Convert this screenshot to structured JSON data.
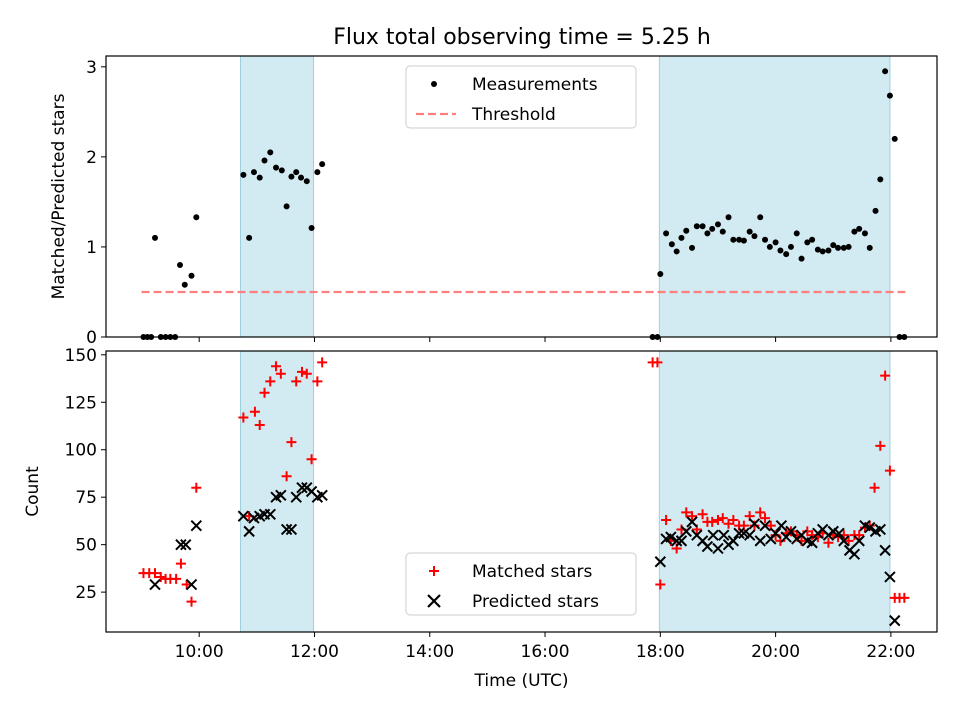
{
  "title": "Flux total observing time = 5.25 h",
  "chart_data": [
    {
      "type": "scatter",
      "ylabel": "Matched/Predicted stars",
      "ylim": [
        0,
        3.12
      ],
      "yticks": [
        0,
        1,
        2,
        3
      ],
      "xlim": [
        "08:23",
        "22:48"
      ],
      "shaded_intervals": [
        [
          "10:43",
          "11:59"
        ],
        [
          "17:59",
          "21:59"
        ]
      ],
      "shade_color": "#add8e6",
      "legend": {
        "position": "top-center",
        "entries": [
          "Measurements",
          "Threshold"
        ]
      },
      "threshold": {
        "name": "Threshold",
        "value": 0.5,
        "x": [
          "09:00",
          "22:15"
        ],
        "color": "#ff7f7f",
        "style": "dashed"
      },
      "series": [
        {
          "name": "Measurements",
          "marker": "dot",
          "color": "#000000",
          "points": [
            [
              "09:02",
              0
            ],
            [
              "09:06",
              0
            ],
            [
              "09:10",
              0
            ],
            [
              "09:14",
              1.1
            ],
            [
              "09:20",
              0
            ],
            [
              "09:25",
              0
            ],
            [
              "09:30",
              0
            ],
            [
              "09:35",
              0
            ],
            [
              "09:40",
              0.8
            ],
            [
              "09:45",
              0.58
            ],
            [
              "09:52",
              0.68
            ],
            [
              "09:57",
              1.33
            ],
            [
              "10:46",
              1.8
            ],
            [
              "10:52",
              1.1
            ],
            [
              "10:57",
              1.83
            ],
            [
              "11:03",
              1.77
            ],
            [
              "11:08",
              1.96
            ],
            [
              "11:14",
              2.05
            ],
            [
              "11:20",
              1.88
            ],
            [
              "11:26",
              1.85
            ],
            [
              "11:31",
              1.45
            ],
            [
              "11:36",
              1.78
            ],
            [
              "11:41",
              1.83
            ],
            [
              "11:46",
              1.77
            ],
            [
              "11:52",
              1.73
            ],
            [
              "11:57",
              1.21
            ],
            [
              "12:03",
              1.83
            ],
            [
              "12:08",
              1.92
            ],
            [
              "17:52",
              0
            ],
            [
              "17:57",
              0
            ],
            [
              "18:00",
              0.7
            ],
            [
              "18:06",
              1.15
            ],
            [
              "18:12",
              1.03
            ],
            [
              "18:17",
              0.95
            ],
            [
              "18:22",
              1.1
            ],
            [
              "18:27",
              1.18
            ],
            [
              "18:33",
              0.99
            ],
            [
              "18:38",
              1.23
            ],
            [
              "18:44",
              1.23
            ],
            [
              "18:49",
              1.15
            ],
            [
              "18:54",
              1.2
            ],
            [
              "19:00",
              1.25
            ],
            [
              "19:05",
              1.17
            ],
            [
              "19:11",
              1.33
            ],
            [
              "19:16",
              1.08
            ],
            [
              "19:22",
              1.08
            ],
            [
              "19:27",
              1.07
            ],
            [
              "19:33",
              1.17
            ],
            [
              "19:38",
              1.12
            ],
            [
              "19:44",
              1.33
            ],
            [
              "19:49",
              1.08
            ],
            [
              "19:54",
              1.0
            ],
            [
              "20:00",
              1.05
            ],
            [
              "20:05",
              0.96
            ],
            [
              "20:11",
              0.92
            ],
            [
              "20:16",
              1.0
            ],
            [
              "20:22",
              1.15
            ],
            [
              "20:27",
              0.87
            ],
            [
              "20:33",
              1.05
            ],
            [
              "20:38",
              1.08
            ],
            [
              "20:44",
              0.97
            ],
            [
              "20:49",
              0.95
            ],
            [
              "20:55",
              0.96
            ],
            [
              "21:00",
              1.02
            ],
            [
              "21:05",
              0.99
            ],
            [
              "21:11",
              0.99
            ],
            [
              "21:16",
              1.0
            ],
            [
              "21:22",
              1.17
            ],
            [
              "21:27",
              1.2
            ],
            [
              "21:33",
              1.15
            ],
            [
              "21:38",
              0.99
            ],
            [
              "21:44",
              1.4
            ],
            [
              "21:49",
              1.75
            ],
            [
              "21:54",
              2.95
            ],
            [
              "21:59",
              2.68
            ],
            [
              "22:04",
              2.2
            ],
            [
              "22:09",
              0
            ],
            [
              "22:14",
              0
            ]
          ]
        }
      ]
    },
    {
      "type": "scatter",
      "xlabel": "Time (UTC)",
      "ylabel": "Count",
      "ylim": [
        4,
        152
      ],
      "yticks": [
        25,
        50,
        75,
        100,
        125,
        150
      ],
      "xlim": [
        "08:23",
        "22:48"
      ],
      "xticks": [
        "10:00",
        "12:00",
        "14:00",
        "16:00",
        "18:00",
        "20:00",
        "22:00"
      ],
      "shaded_intervals": [
        [
          "10:43",
          "11:59"
        ],
        [
          "17:59",
          "21:59"
        ]
      ],
      "shade_color": "#add8e6",
      "legend": {
        "position": "bottom-center",
        "entries": [
          "Matched stars",
          "Predicted stars"
        ]
      },
      "series": [
        {
          "name": "Matched stars",
          "marker": "plus",
          "color": "#ff0000",
          "points": [
            [
              "09:02",
              35
            ],
            [
              "09:08",
              35
            ],
            [
              "09:14",
              35
            ],
            [
              "09:20",
              33
            ],
            [
              "09:25",
              32
            ],
            [
              "09:30",
              32
            ],
            [
              "09:36",
              32
            ],
            [
              "09:41",
              40
            ],
            [
              "09:47",
              29
            ],
            [
              "09:52",
              20
            ],
            [
              "09:57",
              80
            ],
            [
              "10:46",
              117
            ],
            [
              "10:52",
              65
            ],
            [
              "10:58",
              120
            ],
            [
              "11:03",
              113
            ],
            [
              "11:08",
              130
            ],
            [
              "11:14",
              136
            ],
            [
              "11:20",
              144
            ],
            [
              "11:25",
              140
            ],
            [
              "11:31",
              86
            ],
            [
              "11:36",
              104
            ],
            [
              "11:41",
              136
            ],
            [
              "11:47",
              141
            ],
            [
              "11:52",
              140
            ],
            [
              "11:57",
              95
            ],
            [
              "12:03",
              136
            ],
            [
              "12:08",
              146
            ],
            [
              "17:52",
              146
            ],
            [
              "17:57",
              146
            ],
            [
              "18:00",
              29
            ],
            [
              "18:06",
              63
            ],
            [
              "18:11",
              52
            ],
            [
              "18:17",
              48
            ],
            [
              "18:22",
              58
            ],
            [
              "18:27",
              67
            ],
            [
              "18:33",
              65
            ],
            [
              "18:38",
              58
            ],
            [
              "18:44",
              66
            ],
            [
              "18:49",
              62
            ],
            [
              "18:54",
              62
            ],
            [
              "19:00",
              63
            ],
            [
              "19:05",
              64
            ],
            [
              "19:11",
              61
            ],
            [
              "19:16",
              63
            ],
            [
              "19:22",
              60
            ],
            [
              "19:27",
              60
            ],
            [
              "19:33",
              65
            ],
            [
              "19:38",
              60
            ],
            [
              "19:44",
              67
            ],
            [
              "19:49",
              64
            ],
            [
              "19:55",
              60
            ],
            [
              "20:00",
              55
            ],
            [
              "20:05",
              52
            ],
            [
              "20:11",
              56
            ],
            [
              "20:16",
              57
            ],
            [
              "20:22",
              55
            ],
            [
              "20:27",
              52
            ],
            [
              "20:33",
              57
            ],
            [
              "20:38",
              55
            ],
            [
              "20:44",
              54
            ],
            [
              "20:49",
              56
            ],
            [
              "20:55",
              51
            ],
            [
              "21:00",
              55
            ],
            [
              "21:05",
              54
            ],
            [
              "21:11",
              55
            ],
            [
              "21:16",
              52
            ],
            [
              "21:22",
              55
            ],
            [
              "21:27",
              55
            ],
            [
              "21:33",
              59
            ],
            [
              "21:38",
              60
            ],
            [
              "21:43",
              80
            ],
            [
              "21:49",
              102
            ],
            [
              "21:54",
              139
            ],
            [
              "21:59",
              89
            ],
            [
              "22:04",
              22
            ],
            [
              "22:09",
              22
            ],
            [
              "22:14",
              22
            ]
          ]
        },
        {
          "name": "Predicted stars",
          "marker": "x",
          "color": "#000000",
          "points": [
            [
              "09:14",
              29
            ],
            [
              "09:41",
              50
            ],
            [
              "09:46",
              50
            ],
            [
              "09:52",
              29
            ],
            [
              "09:57",
              60
            ],
            [
              "10:46",
              65
            ],
            [
              "10:52",
              57
            ],
            [
              "10:57",
              64
            ],
            [
              "11:03",
              65
            ],
            [
              "11:08",
              66
            ],
            [
              "11:14",
              66
            ],
            [
              "11:20",
              75
            ],
            [
              "11:25",
              76
            ],
            [
              "11:31",
              58
            ],
            [
              "11:36",
              58
            ],
            [
              "11:41",
              75
            ],
            [
              "11:47",
              80
            ],
            [
              "11:52",
              80
            ],
            [
              "11:57",
              78
            ],
            [
              "12:03",
              75
            ],
            [
              "12:08",
              76
            ],
            [
              "18:00",
              41
            ],
            [
              "18:06",
              53
            ],
            [
              "18:11",
              54
            ],
            [
              "18:17",
              52
            ],
            [
              "18:22",
              52
            ],
            [
              "18:27",
              57
            ],
            [
              "18:33",
              62
            ],
            [
              "18:38",
              55
            ],
            [
              "18:44",
              52
            ],
            [
              "18:49",
              49
            ],
            [
              "18:55",
              55
            ],
            [
              "19:00",
              48
            ],
            [
              "19:06",
              55
            ],
            [
              "19:11",
              50
            ],
            [
              "19:16",
              52
            ],
            [
              "19:22",
              56
            ],
            [
              "19:27",
              56
            ],
            [
              "19:33",
              55
            ],
            [
              "19:38",
              61
            ],
            [
              "19:44",
              52
            ],
            [
              "19:49",
              60
            ],
            [
              "19:55",
              53
            ],
            [
              "20:00",
              56
            ],
            [
              "20:06",
              60
            ],
            [
              "20:11",
              54
            ],
            [
              "20:16",
              57
            ],
            [
              "20:22",
              53
            ],
            [
              "20:27",
              55
            ],
            [
              "20:33",
              52
            ],
            [
              "20:38",
              51
            ],
            [
              "20:44",
              56
            ],
            [
              "20:49",
              58
            ],
            [
              "20:55",
              55
            ],
            [
              "21:00",
              57
            ],
            [
              "21:06",
              56
            ],
            [
              "21:11",
              52
            ],
            [
              "21:17",
              47
            ],
            [
              "21:22",
              45
            ],
            [
              "21:27",
              52
            ],
            [
              "21:33",
              60
            ],
            [
              "21:38",
              59
            ],
            [
              "21:44",
              57
            ],
            [
              "21:49",
              58
            ],
            [
              "21:54",
              47
            ],
            [
              "21:59",
              33
            ],
            [
              "22:04",
              10
            ]
          ]
        }
      ]
    }
  ]
}
